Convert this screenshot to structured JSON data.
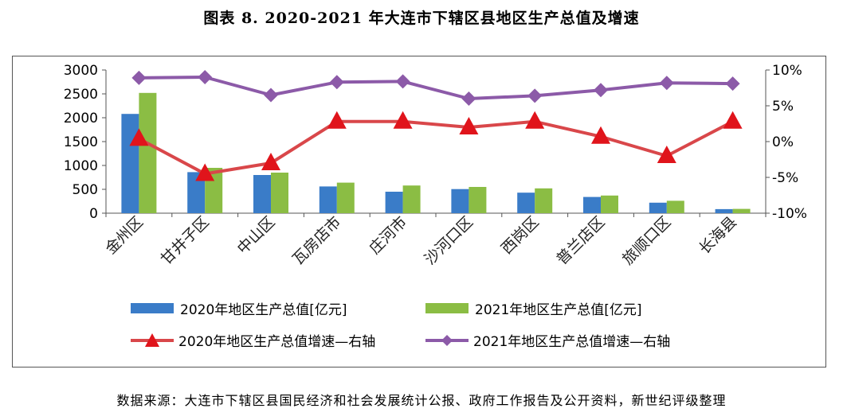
{
  "title": "图表 8.   2020-2021 年大连市下辖区县地区生产总值及增速",
  "source": "数据来源：大连市下辖区县国民经济和社会发展统计公报、政府工作报告及公开资料，新世纪评级整理",
  "colors": {
    "bar2020": "#3a7cc8",
    "bar2021": "#8bbd44",
    "line2020": "#d9474a",
    "marker2020": "#e0141b",
    "line2021": "#8c5aa8"
  },
  "chart_data": {
    "type": "bar",
    "categories": [
      "金州区",
      "甘井子区",
      "中山区",
      "瓦房店市",
      "庄河市",
      "沙河口区",
      "西岗区",
      "普兰店区",
      "旅顺口区",
      "长海县"
    ],
    "series": [
      {
        "name": "2020年地区生产总值[亿元]",
        "type": "bar",
        "axis": "left",
        "values": [
          2080,
          860,
          800,
          560,
          450,
          505,
          430,
          340,
          220,
          85
        ]
      },
      {
        "name": "2021年地区生产总值[亿元]",
        "type": "bar",
        "axis": "left",
        "values": [
          2520,
          950,
          850,
          640,
          580,
          550,
          520,
          370,
          260,
          90
        ]
      },
      {
        "name": "2020年地区生产总值增速—右轴",
        "type": "line",
        "axis": "right",
        "values": [
          0.4,
          -4.5,
          -3.0,
          2.8,
          2.8,
          2.0,
          2.8,
          0.7,
          -2.0,
          2.8
        ]
      },
      {
        "name": "2021年地区生产总值增速—右轴",
        "type": "line",
        "axis": "right",
        "values": [
          8.9,
          9.0,
          6.5,
          8.3,
          8.4,
          6.0,
          6.4,
          7.2,
          8.2,
          8.1
        ]
      }
    ],
    "y_left": {
      "min": 0,
      "max": 3000,
      "ticks": [
        "0",
        "500",
        "1000",
        "1500",
        "2000",
        "2500",
        "3000"
      ]
    },
    "y_right": {
      "min": -10,
      "max": 10,
      "ticks": [
        "-10%",
        "-5%",
        "0%",
        "5%",
        "10%"
      ]
    },
    "legend_position": "bottom"
  }
}
